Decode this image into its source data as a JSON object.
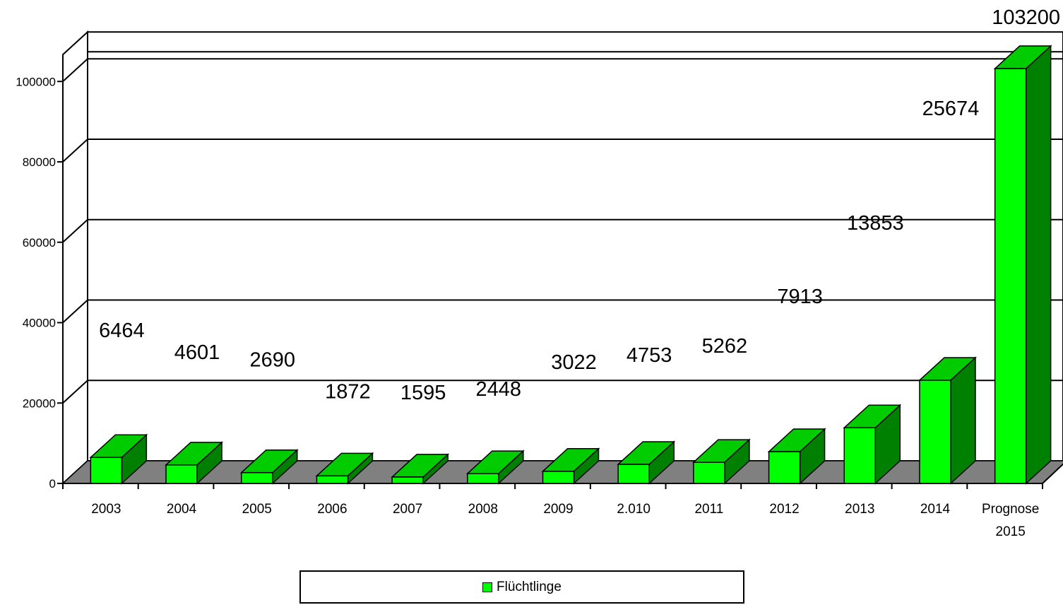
{
  "colors": {
    "bar_front": "#00ff00",
    "bar_top": "#00cc00",
    "bar_side": "#008000",
    "floor": "#808080",
    "wall": "#ffffff"
  },
  "chart_data": {
    "type": "bar",
    "categories": [
      "2003",
      "2004",
      "2005",
      "2006",
      "2007",
      "2008",
      "2009",
      "2.010",
      "2011",
      "2012",
      "2013",
      "2014",
      "Prognose 2015"
    ],
    "series": [
      {
        "name": "Flüchtlinge",
        "values": [
          6464,
          4601,
          2690,
          1872,
          1595,
          2448,
          3022,
          4753,
          5262,
          7913,
          13853,
          25674,
          103200
        ]
      }
    ],
    "data_labels": [
      "6464",
      "4601",
      "2690",
      "1872",
      "1595",
      "2448",
      "3022",
      "4753",
      "5262",
      "7913",
      "13853",
      "25674",
      "103200"
    ],
    "y_ticks": [
      "0",
      "20000",
      "40000",
      "60000",
      "80000",
      "100000"
    ],
    "ylim": [
      0,
      100000
    ],
    "grid": true,
    "legend_position": "bottom",
    "three_d": true
  }
}
